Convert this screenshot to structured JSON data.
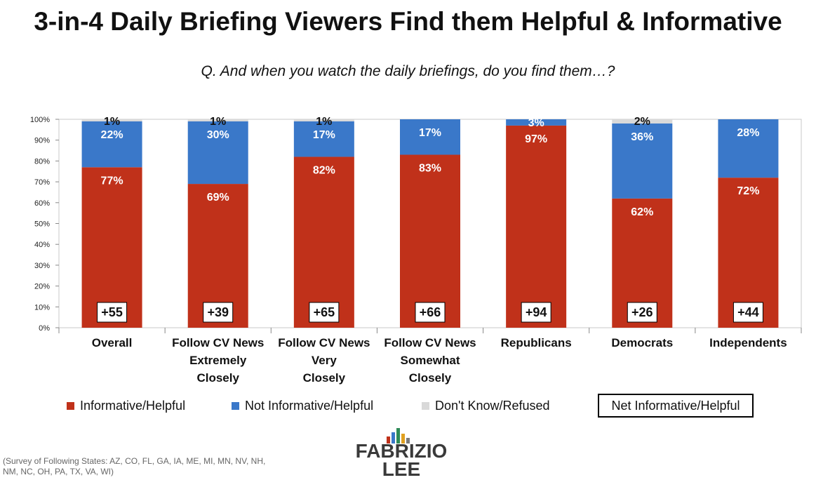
{
  "header": {
    "title": "3-in-4 Daily Briefing Viewers Find them Helpful & Informative",
    "subtitle": "Q. And when you watch the daily briefings, do you find them…?"
  },
  "chart_data": {
    "type": "bar",
    "stacked": true,
    "categories": [
      "Overall",
      "Follow CV News Extremely Closely",
      "Follow CV News Very Closely",
      "Follow CV News Somewhat Closely",
      "Republicans",
      "Democrats",
      "Independents"
    ],
    "series": [
      {
        "name": "Informative/Helpful",
        "color": "#c0311a",
        "values": [
          77,
          69,
          82,
          83,
          97,
          62,
          72
        ]
      },
      {
        "name": "Not Informative/Helpful",
        "color": "#3a78c9",
        "values": [
          22,
          30,
          17,
          17,
          3,
          36,
          28
        ]
      },
      {
        "name": "Don't Know/Refused",
        "color": "#d9d9d9",
        "values": [
          1,
          1,
          1,
          0,
          0,
          2,
          0
        ]
      }
    ],
    "data_labels": [
      [
        "77%",
        "69%",
        "82%",
        "83%",
        "97%",
        "62%",
        "72%"
      ],
      [
        "22%",
        "30%",
        "17%",
        "17%",
        "3%",
        "36%",
        "28%"
      ],
      [
        "1%",
        "1%",
        "1%",
        "",
        "",
        "2%",
        ""
      ]
    ],
    "net_values": [
      "+55",
      "+39",
      "+65",
      "+66",
      "+94",
      "+26",
      "+44"
    ],
    "net_label": "Net Informative/Helpful",
    "yticks": [
      "0%",
      "10%",
      "20%",
      "30%",
      "40%",
      "50%",
      "60%",
      "70%",
      "80%",
      "90%",
      "100%"
    ],
    "ylim": [
      0,
      100
    ],
    "xlabel": "",
    "ylabel": "",
    "grid": false,
    "legend_position": "bottom"
  },
  "legend": {
    "items": [
      {
        "label": "Informative/Helpful",
        "color": "#c0311a"
      },
      {
        "label": "Not Informative/Helpful",
        "color": "#3a78c9"
      },
      {
        "label": "Don't Know/Refused",
        "color": "#d9d9d9"
      }
    ]
  },
  "footnote": "(Survey of Following States: AZ, CO, FL, GA, IA, ME, MI, MN, NV, NH, NM, NC, OH, PA, TX, VA, WI)",
  "logo": {
    "text_line1": "FABRIZIO",
    "text_line2": "LEE"
  }
}
